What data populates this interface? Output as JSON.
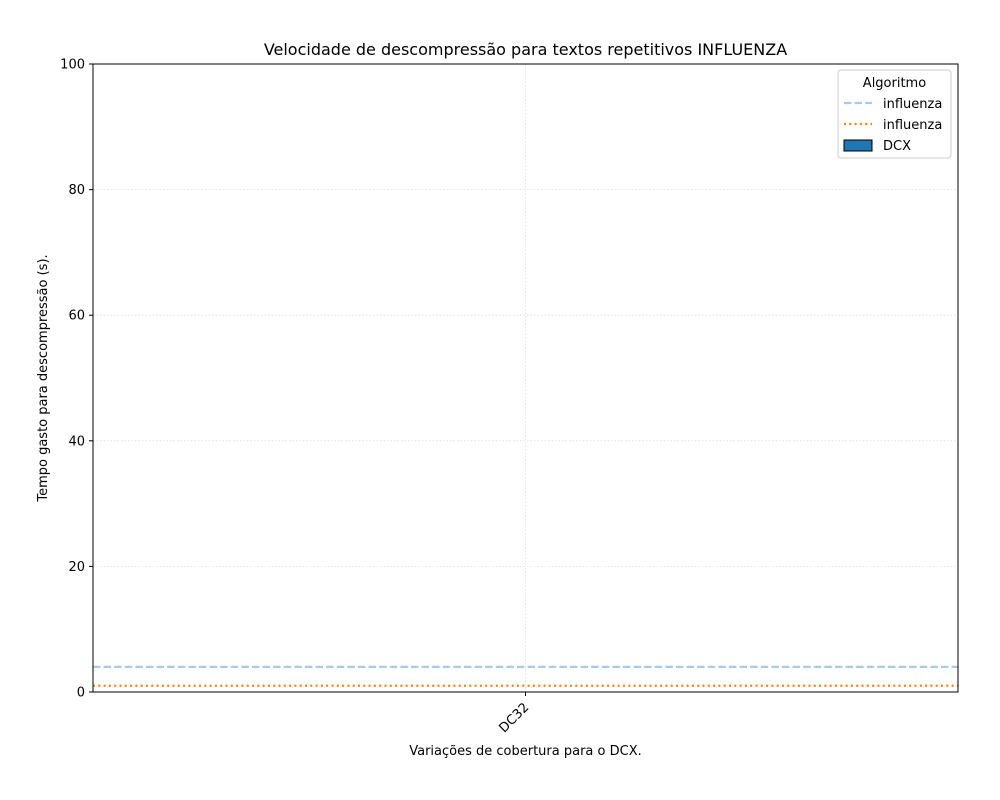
{
  "chart_data": {
    "type": "bar",
    "title": "Velocidade de descompressão para textos repetitivos INFLUENZA",
    "xlabel": "Variações de cobertura para o DCX.",
    "ylabel": "Tempo gasto para descompressão (s).",
    "categories": [
      "DC32"
    ],
    "ylim": [
      0,
      100
    ],
    "yticks": [
      0,
      20,
      40,
      60,
      80,
      100
    ],
    "grid": true,
    "series": [
      {
        "name": "DCX",
        "type": "bar",
        "values": [
          0
        ],
        "color": "#1f77b4"
      }
    ],
    "reference_lines": [
      {
        "name": "influenza",
        "value": 4.0,
        "style": "dashed",
        "color": "#a6cae8"
      },
      {
        "name": "influenza",
        "value": 1.0,
        "style": "dotted",
        "color": "#ff7f0e"
      }
    ],
    "legend": {
      "title": "Algoritmo",
      "placement": "top-right",
      "entries": [
        {
          "label": "influenza",
          "kind": "line",
          "style": "dashed",
          "color": "#a6cae8"
        },
        {
          "label": "influenza",
          "kind": "line",
          "style": "dotted",
          "color": "#ff7f0e"
        },
        {
          "label": "DCX",
          "kind": "patch",
          "color": "#1f77b4"
        }
      ]
    }
  }
}
